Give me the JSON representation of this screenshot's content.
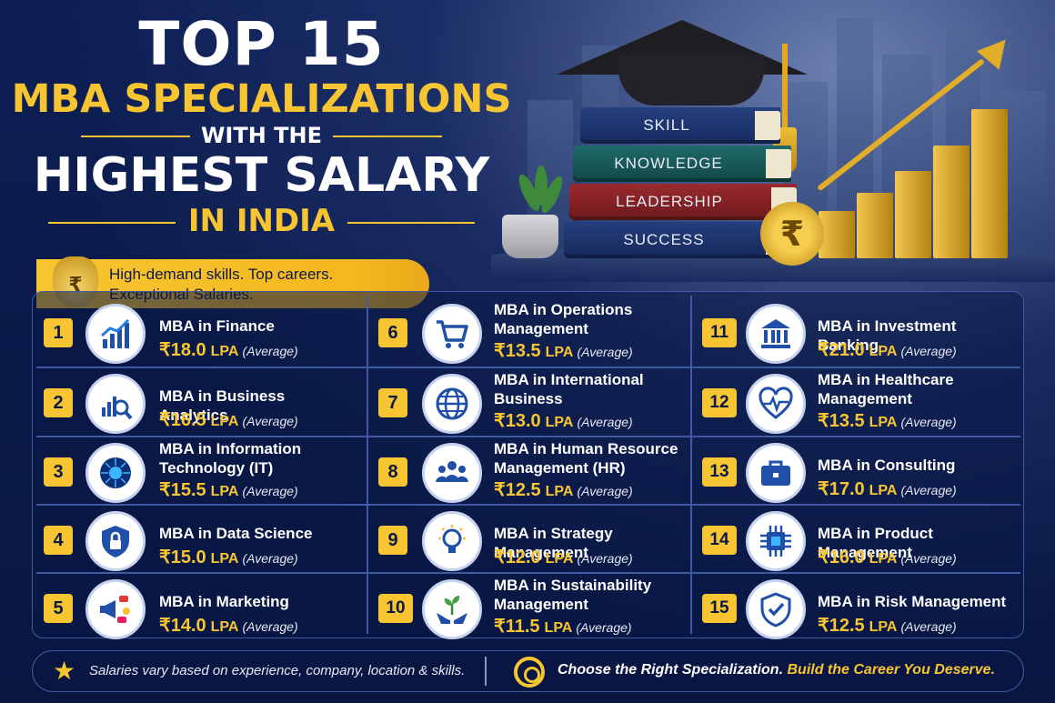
{
  "title": {
    "line1": "TOP 15",
    "line2": "MBA SPECIALIZATIONS",
    "line3": "WITH THE",
    "line4": "HIGHEST SALARY",
    "line5": "IN INDIA"
  },
  "hero": {
    "books": [
      "SKILL",
      "KNOWLEDGE",
      "LEADERSHIP",
      "SUCCESS"
    ],
    "coin_symbol": "₹"
  },
  "ribbon": {
    "icon_symbol": "₹",
    "line1": "High-demand skills. Top careers.",
    "line2": "Exceptional Salaries."
  },
  "salary_suffix": "LPA",
  "average_label": "(Average)",
  "items": [
    {
      "num": "1",
      "name": "MBA in Finance",
      "salary": "₹18.0",
      "icon": "growth-chart-icon"
    },
    {
      "num": "2",
      "name": "MBA in Business Analytics",
      "salary": "₹16.5",
      "icon": "analytics-magnifier-icon"
    },
    {
      "num": "3",
      "name": "MBA in Information Technology (IT)",
      "salary": "₹15.5",
      "icon": "circuit-chip-icon"
    },
    {
      "num": "4",
      "name": "MBA in Data Science",
      "salary": "₹15.0",
      "icon": "shield-lock-icon"
    },
    {
      "num": "5",
      "name": "MBA in Marketing",
      "salary": "₹14.0",
      "icon": "megaphone-icon"
    },
    {
      "num": "6",
      "name": "MBA in Operations Management",
      "salary": "₹13.5",
      "icon": "shopping-cart-icon"
    },
    {
      "num": "7",
      "name": "MBA in International Business",
      "salary": "₹13.0",
      "icon": "globe-icon"
    },
    {
      "num": "8",
      "name": "MBA in Human Resource Management (HR)",
      "salary": "₹12.5",
      "icon": "people-group-icon"
    },
    {
      "num": "9",
      "name": "MBA in Strategy Management",
      "salary": "₹12.0",
      "icon": "lightbulb-icon"
    },
    {
      "num": "10",
      "name": "MBA in Sustainability Management",
      "salary": "₹11.5",
      "icon": "plant-hands-icon"
    },
    {
      "num": "11",
      "name": "MBA in Investment Banking",
      "salary": "₹21.0",
      "icon": "bank-icon"
    },
    {
      "num": "12",
      "name": "MBA in Healthcare Management",
      "salary": "₹13.5",
      "icon": "heartbeat-icon"
    },
    {
      "num": "13",
      "name": "MBA in Consulting",
      "salary": "₹17.0",
      "icon": "briefcase-icon"
    },
    {
      "num": "14",
      "name": "MBA in Product Management",
      "salary": "₹16.0",
      "icon": "chip-icon"
    },
    {
      "num": "15",
      "name": "MBA in Risk Management",
      "salary": "₹12.5",
      "icon": "shield-check-icon"
    }
  ],
  "footer": {
    "note": "Salaries vary based on experience, company, location & skills.",
    "cta_white": "Choose the Right Specialization.",
    "cta_yellow": "Build the Career You Deserve."
  },
  "colors": {
    "background": "#0b1a45",
    "accent": "#f7c531",
    "border": "#3f5aa3"
  }
}
